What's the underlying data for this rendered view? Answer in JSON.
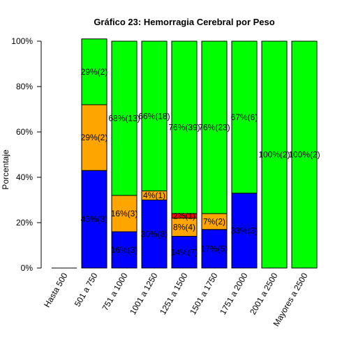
{
  "chart_data": {
    "type": "bar",
    "stacked": true,
    "title": "Gráfico 23: Hemorragia Cerebral por Peso",
    "xlabel": "",
    "ylabel": "Porcentaje",
    "ylim": [
      0,
      1
    ],
    "y_ticks": [
      "0%",
      "20%",
      "40%",
      "60%",
      "80%",
      "100%"
    ],
    "categories": [
      "Hasta 500",
      "501 a 750",
      "751 a 1000",
      "1001 a 1250",
      "1251 a 1500",
      "1501 a 1750",
      "1751 a 2000",
      "2001 a 2500",
      "Mayores a 2500"
    ],
    "colors": {
      "blue": "#0000ff",
      "orange": "#ffa500",
      "red": "#ff0000",
      "green": "#00ff00"
    },
    "series": [
      {
        "color_key": "blue",
        "values": [
          0,
          0.43,
          0.16,
          0.3,
          0.14,
          0.17,
          0.33,
          0,
          0
        ],
        "labels": [
          "",
          "43%(3)",
          "16%(3)",
          "30%(8)",
          "14%(7)",
          "17%(5)",
          "33%(3)",
          "",
          ""
        ]
      },
      {
        "color_key": "orange",
        "values": [
          0,
          0.29,
          0.16,
          0.04,
          0.08,
          0.07,
          0,
          0,
          0
        ],
        "labels": [
          "",
          "29%(2)",
          "16%(3)",
          "4%(1)",
          "8%(4)",
          "7%(2)",
          "",
          "",
          ""
        ]
      },
      {
        "color_key": "red",
        "values": [
          0,
          0,
          0,
          0,
          0.02,
          0,
          0,
          0,
          0
        ],
        "labels": [
          "",
          "",
          "",
          "",
          "2%(1)",
          "",
          "",
          "",
          ""
        ]
      },
      {
        "color_key": "green",
        "values": [
          0,
          0.29,
          0.68,
          0.66,
          0.76,
          0.76,
          0.67,
          1.0,
          1.0
        ],
        "labels": [
          "",
          "29%(2)",
          "68%(13)",
          "66%(18)",
          "76%(39)",
          "76%(23)",
          "67%(6)",
          "100%(2)",
          "100%(2)"
        ]
      }
    ]
  }
}
